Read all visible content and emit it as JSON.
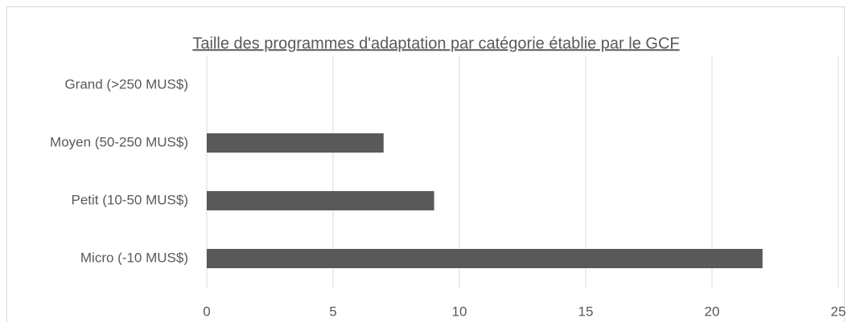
{
  "chart_data": {
    "type": "bar",
    "orientation": "horizontal",
    "title": "Taille des programmes d'adaptation par catégorie établie par le GCF",
    "categories": [
      "Grand (>250 MUS$)",
      "Moyen (50-250 MUS$)",
      "Petit (10-50 MUS$)",
      "Micro (-10 MUS$)"
    ],
    "values": [
      0,
      7,
      9,
      22
    ],
    "color": "#595959",
    "xlim": [
      0,
      25
    ],
    "xticks": [
      0,
      5,
      10,
      15,
      20,
      25
    ],
    "grid": true
  }
}
